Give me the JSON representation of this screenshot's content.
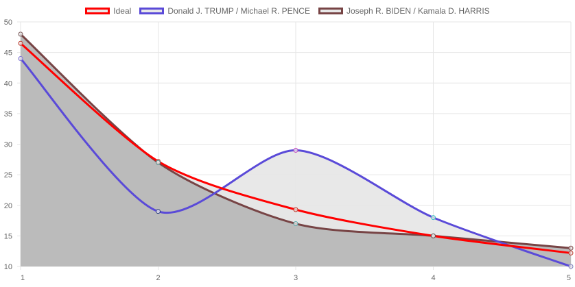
{
  "chart_data": {
    "type": "line",
    "x": [
      1,
      2,
      3,
      4,
      5
    ],
    "series": [
      {
        "name": "Ideal",
        "values": [
          46.5,
          27.2,
          19.3,
          15.0,
          12.2
        ],
        "color": "#ff0000"
      },
      {
        "name": "Donald J. TRUMP / Michael R. PENCE",
        "values": [
          44,
          19,
          29,
          18,
          10
        ],
        "color": "#5a4ad8"
      },
      {
        "name": "Joseph R. BIDEN / Kamala D. HARRIS",
        "values": [
          48,
          27,
          17,
          15,
          13
        ],
        "color": "#774445"
      }
    ],
    "point_colors": [
      [
        "#c0392b",
        "#c0392b",
        "#c0392b",
        "#c0392b",
        "#c0392b"
      ],
      [
        "#7b6fd6",
        "#2c3e80",
        "#c040c0",
        "#40c8c0",
        "#8080c0"
      ],
      [
        "#7a5a5a",
        "#4a8a8a",
        "#5aaaaa",
        "#5a5a5a",
        "#7a4040"
      ]
    ],
    "ylim": [
      10,
      50
    ],
    "yticks": [
      10,
      15,
      20,
      25,
      30,
      35,
      40,
      45,
      50
    ],
    "xticks": [
      "1",
      "2",
      "3",
      "4",
      "5"
    ],
    "legend_position": "top",
    "grid": true,
    "fill_colors": {
      "light": "#e6e6e6",
      "dark": "#bbbbbb",
      "grid": "#e6e6e6"
    }
  }
}
